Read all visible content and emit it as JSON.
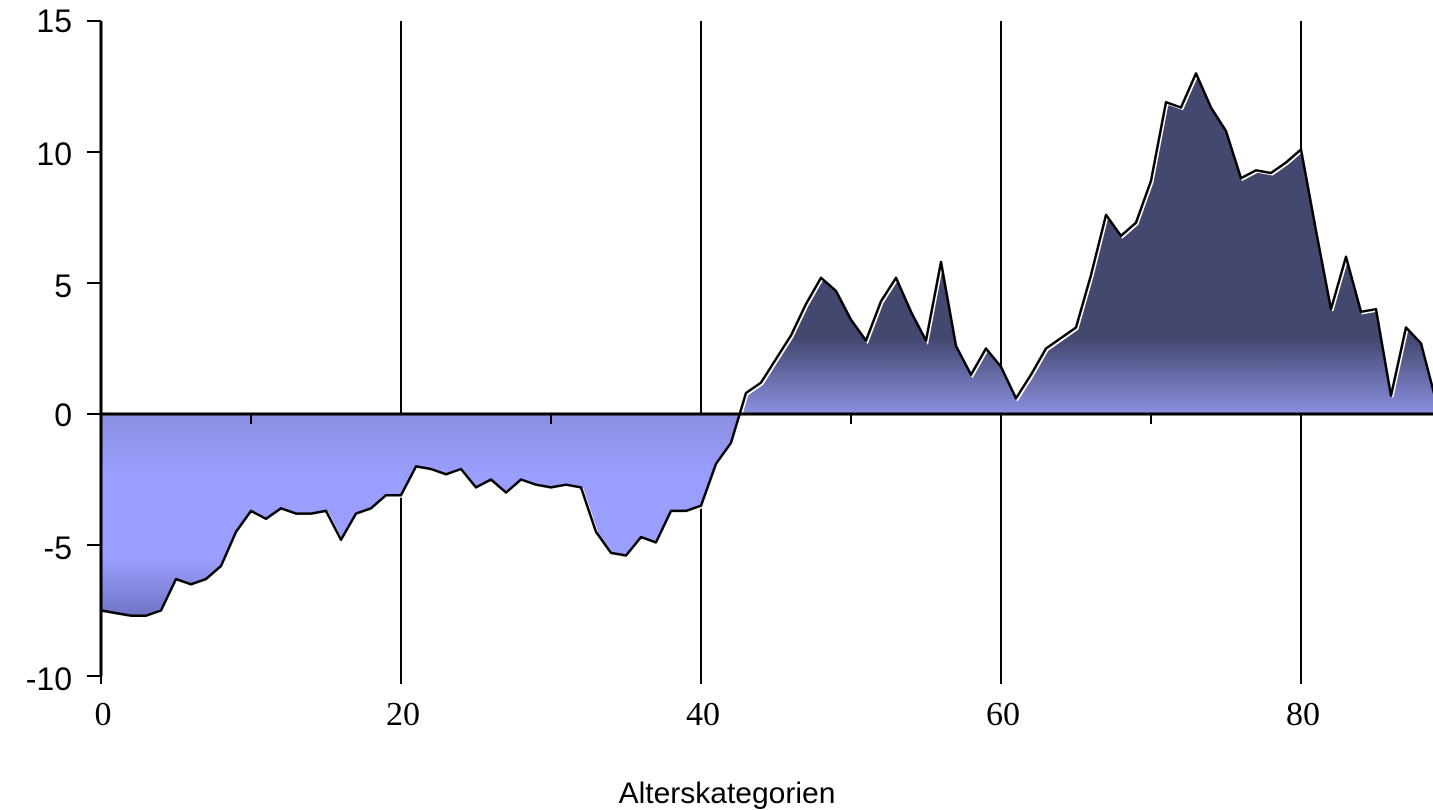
{
  "chart_data": {
    "type": "area",
    "title": "",
    "xlabel": "Alterskategorien",
    "ylabel": "",
    "xlim": [
      0,
      88.5
    ],
    "ylim": [
      -10,
      15
    ],
    "x_ticks": [
      "0",
      "20",
      "40",
      "60",
      "80"
    ],
    "y_ticks": [
      "15",
      "10",
      "5",
      "0",
      "-5",
      "-10"
    ],
    "grid": "vertical",
    "legend": "none",
    "colors": {
      "positive_top": "#44476e",
      "positive_bottom": "#8a8fe0",
      "negative_top": "#8a8fe0",
      "negative_mid": "#9a9eff",
      "negative_bottom": "#6e72c0",
      "line": "#000000"
    },
    "series": [
      {
        "values": [
          -7.5,
          -7.6,
          -7.7,
          -7.7,
          -7.5,
          -6.3,
          -6.5,
          -6.3,
          -5.8,
          -4.5,
          -3.7,
          -4.0,
          -3.6,
          -3.8,
          -3.8,
          -3.7,
          -4.8,
          -3.8,
          -3.6,
          -3.1,
          -3.1,
          -2.0,
          -2.1,
          -2.3,
          -2.1,
          -2.8,
          -2.5,
          -3.0,
          -2.5,
          -2.7,
          -2.8,
          -2.7,
          -2.8,
          -4.5,
          -5.3,
          -5.4,
          -4.7,
          -4.9,
          -3.7,
          -3.7,
          -3.5,
          -1.9,
          -1.1,
          0.8,
          1.2,
          2.1,
          3.0,
          4.2,
          5.2,
          4.7,
          3.6,
          2.8,
          4.3,
          5.2,
          3.9,
          2.8,
          5.8,
          2.6,
          1.5,
          2.5,
          1.8,
          0.6,
          1.5,
          2.5,
          2.9,
          3.3,
          5.3,
          7.6,
          6.8,
          7.3,
          8.9,
          11.9,
          11.7,
          13.0,
          11.7,
          10.8,
          9.0,
          9.3,
          9.2,
          9.6,
          10.1,
          7.0,
          4.0,
          6.0,
          3.9,
          4.0,
          0.7,
          3.3,
          2.7,
          0.5
        ]
      }
    ]
  }
}
